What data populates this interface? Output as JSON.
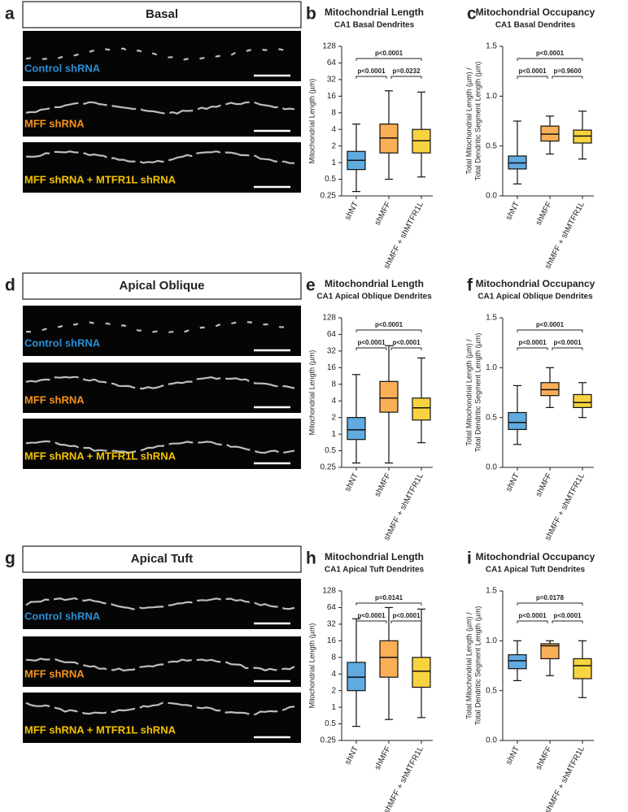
{
  "panels": [
    {
      "letter": "a",
      "title": "Basal",
      "images": [
        "Control shRNA",
        "MFF shRNA",
        "MFF shRNA + MTFR1L shRNA"
      ]
    },
    {
      "letter": "d",
      "title": "Apical Oblique",
      "images": [
        "Control shRNA",
        "MFF shRNA",
        "MFF shRNA + MTFR1L shRNA"
      ]
    },
    {
      "letter": "g",
      "title": "Apical Tuft",
      "images": [
        "Control shRNA",
        "MFF shRNA",
        "MFF shRNA + MTFR1L shRNA"
      ]
    }
  ],
  "chart_data": [
    {
      "type": "box",
      "letter": "b",
      "title": "Mitochondrial Length",
      "subtitle": "CA1 Basal Dendrites",
      "ylabel": [
        "Mitochondrial Length (µm)"
      ],
      "log_scale": true,
      "ylim": [
        0.25,
        128
      ],
      "yticks": [
        0.25,
        0.5,
        1,
        2,
        4,
        8,
        16,
        32,
        64,
        128
      ],
      "categories": [
        "shNT",
        "shMFF",
        "shMFF + shMTFR1L"
      ],
      "colors": [
        "#2b8fd6",
        "#f7941d",
        "#f5c400"
      ],
      "boxes": [
        {
          "min": 0.3,
          "q1": 0.75,
          "median": 1.1,
          "q3": 1.6,
          "max": 5
        },
        {
          "min": 0.5,
          "q1": 1.5,
          "median": 2.8,
          "q3": 5,
          "max": 20
        },
        {
          "min": 0.55,
          "q1": 1.5,
          "median": 2.5,
          "q3": 4,
          "max": 19
        }
      ],
      "brackets": [
        {
          "label": "p<0.0001",
          "between": [
            "shNT",
            "shMFF + shMTFR1L"
          ]
        },
        {
          "label": "p<0.0001",
          "between": [
            "shNT",
            "shMFF"
          ]
        },
        {
          "label": "p=0.0232",
          "between": [
            "shMFF",
            "shMFF + shMTFR1L"
          ]
        }
      ]
    },
    {
      "type": "box",
      "letter": "c",
      "title": "Mitochondrial Occupancy",
      "subtitle": "CA1 Basal Dendrites",
      "ylabel": [
        "Total Mitochondrial Length (µm) /",
        "Total Dendritic Segment Length (µm)"
      ],
      "log_scale": false,
      "ylim": [
        0,
        1.5
      ],
      "yticks": [
        {
          "value": 0,
          "label": "0.0"
        },
        0.5,
        {
          "value": 1,
          "label": "1.0"
        },
        1.5
      ],
      "categories": [
        "shNT",
        "shMFF",
        "shMFF + shMTFR1L"
      ],
      "colors": [
        "#2b8fd6",
        "#f7941d",
        "#f5c400"
      ],
      "boxes": [
        {
          "min": 0.12,
          "q1": 0.27,
          "median": 0.33,
          "q3": 0.4,
          "max": 0.75
        },
        {
          "min": 0.42,
          "q1": 0.55,
          "median": 0.62,
          "q3": 0.7,
          "max": 0.8
        },
        {
          "min": 0.37,
          "q1": 0.53,
          "median": 0.6,
          "q3": 0.66,
          "max": 0.85
        }
      ],
      "brackets": [
        {
          "label": "p<0.0001",
          "between": [
            "shNT",
            "shMFF + shMTFR1L"
          ]
        },
        {
          "label": "p<0.0001",
          "between": [
            "shNT",
            "shMFF"
          ]
        },
        {
          "label": "p=0.9600",
          "between": [
            "shMFF",
            "shMFF + shMTFR1L"
          ]
        }
      ]
    },
    {
      "type": "box",
      "letter": "e",
      "title": "Mitochondrial Length",
      "subtitle": "CA1 Apical Oblique Dendrites",
      "ylabel": [
        "Mitochondrial Length (µm)"
      ],
      "log_scale": true,
      "ylim": [
        0.25,
        128
      ],
      "yticks": [
        0.25,
        0.5,
        1,
        2,
        4,
        8,
        16,
        32,
        64,
        128
      ],
      "categories": [
        "shNT",
        "shMFF",
        "shMFF + shMTFR1L"
      ],
      "colors": [
        "#2b8fd6",
        "#f7941d",
        "#f5c400"
      ],
      "boxes": [
        {
          "min": 0.3,
          "q1": 0.8,
          "median": 1.2,
          "q3": 2,
          "max": 12
        },
        {
          "min": 0.3,
          "q1": 2.5,
          "median": 4.5,
          "q3": 9,
          "max": 40
        },
        {
          "min": 0.7,
          "q1": 1.8,
          "median": 3,
          "q3": 4.5,
          "max": 24
        }
      ],
      "brackets": [
        {
          "label": "p<0.0001",
          "between": [
            "shNT",
            "shMFF + shMTFR1L"
          ]
        },
        {
          "label": "p<0.0001",
          "between": [
            "shNT",
            "shMFF"
          ]
        },
        {
          "label": "p<0.0001",
          "between": [
            "shMFF",
            "shMFF + shMTFR1L"
          ]
        }
      ]
    },
    {
      "type": "box",
      "letter": "f",
      "title": "Mitochondrial Occupancy",
      "subtitle": "CA1 Apical Oblique Dendrites",
      "ylabel": [
        "Total Mitochondrial Length (µm) /",
        "Total Dendritic Segment Length (µm)"
      ],
      "log_scale": false,
      "ylim": [
        0,
        1.5
      ],
      "yticks": [
        {
          "value": 0,
          "label": "0.0"
        },
        0.5,
        {
          "value": 1,
          "label": "1.0"
        },
        1.5
      ],
      "categories": [
        "shNT",
        "shMFF",
        "shMFF + shMTFR1L"
      ],
      "colors": [
        "#2b8fd6",
        "#f7941d",
        "#f5c400"
      ],
      "boxes": [
        {
          "min": 0.23,
          "q1": 0.38,
          "median": 0.45,
          "q3": 0.55,
          "max": 0.82
        },
        {
          "min": 0.6,
          "q1": 0.72,
          "median": 0.78,
          "q3": 0.85,
          "max": 1.0
        },
        {
          "min": 0.5,
          "q1": 0.6,
          "median": 0.65,
          "q3": 0.73,
          "max": 0.85
        }
      ],
      "brackets": [
        {
          "label": "p<0.0001",
          "between": [
            "shNT",
            "shMFF + shMTFR1L"
          ]
        },
        {
          "label": "p<0.0001",
          "between": [
            "shNT",
            "shMFF"
          ]
        },
        {
          "label": "p<0.0001",
          "between": [
            "shMFF",
            "shMFF + shMTFR1L"
          ]
        }
      ]
    },
    {
      "type": "box",
      "letter": "h",
      "title": "Mitochondrial Length",
      "subtitle": "CA1 Apical Tuft Dendrites",
      "ylabel": [
        "Mitochondrial Length (µm)"
      ],
      "log_scale": true,
      "ylim": [
        0.25,
        128
      ],
      "yticks": [
        0.25,
        0.5,
        1,
        2,
        4,
        8,
        16,
        32,
        64,
        128
      ],
      "categories": [
        "shNT",
        "shMFF",
        "shMFF + shMTFR1L"
      ],
      "colors": [
        "#2b8fd6",
        "#f7941d",
        "#f5c400"
      ],
      "boxes": [
        {
          "min": 0.45,
          "q1": 2,
          "median": 3.5,
          "q3": 6.5,
          "max": 40
        },
        {
          "min": 0.6,
          "q1": 3.5,
          "median": 8,
          "q3": 16,
          "max": 64
        },
        {
          "min": 0.65,
          "q1": 2.3,
          "median": 4.5,
          "q3": 8,
          "max": 60
        }
      ],
      "brackets": [
        {
          "label": "p=0.0141",
          "between": [
            "shNT",
            "shMFF + shMTFR1L"
          ]
        },
        {
          "label": "p<0.0001",
          "between": [
            "shNT",
            "shMFF"
          ]
        },
        {
          "label": "p<0.0001",
          "between": [
            "shMFF",
            "shMFF + shMTFR1L"
          ]
        }
      ]
    },
    {
      "type": "box",
      "letter": "i",
      "title": "Mitochondrial Occupancy",
      "subtitle": "CA1 Apical Tuft Dendrites",
      "ylabel": [
        "Total Mitochondrial Length (µm) /",
        "Total Dendritic Segment Length (µm)"
      ],
      "log_scale": false,
      "ylim": [
        0,
        1.5
      ],
      "yticks": [
        {
          "value": 0,
          "label": "0.0"
        },
        0.5,
        {
          "value": 1,
          "label": "1.0"
        },
        1.5
      ],
      "categories": [
        "shNT",
        "shMFF",
        "shMFF + shMTFR1L"
      ],
      "colors": [
        "#2b8fd6",
        "#f7941d",
        "#f5c400"
      ],
      "boxes": [
        {
          "min": 0.6,
          "q1": 0.72,
          "median": 0.8,
          "q3": 0.86,
          "max": 1.0
        },
        {
          "min": 0.65,
          "q1": 0.82,
          "median": 0.95,
          "q3": 0.97,
          "max": 1.0
        },
        {
          "min": 0.43,
          "q1": 0.62,
          "median": 0.75,
          "q3": 0.82,
          "max": 1.0
        }
      ],
      "brackets": [
        {
          "label": "p=0.0178",
          "between": [
            "shNT",
            "shMFF + shMTFR1L"
          ]
        },
        {
          "label": "p<0.0001",
          "between": [
            "shNT",
            "shMFF"
          ]
        },
        {
          "label": "p<0.0001",
          "between": [
            "shMFF",
            "shMFF + shMTFR1L"
          ]
        }
      ]
    }
  ]
}
